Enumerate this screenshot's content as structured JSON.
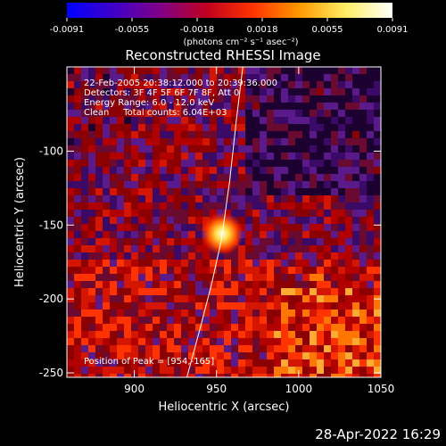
{
  "colorbar": {
    "ticks": [
      "-0.0091",
      "-0.0055",
      "-0.0018",
      "0.0018",
      "0.0055",
      "0.0091"
    ],
    "unit_label": "(photons cm⁻² s⁻¹ asec⁻²)",
    "stops": [
      "#0000ff",
      "#3f00c8",
      "#7f0088",
      "#c00020",
      "#ff3300",
      "#ff9900",
      "#ffee66",
      "#ffffff"
    ]
  },
  "chart_data": {
    "type": "heatmap",
    "title": "Reconstructed RHESSI Image",
    "xlabel": "Heliocentric X (arcsec)",
    "ylabel": "Heliocentric Y (arcsec)",
    "xlim": [
      859,
      1050
    ],
    "ylim": [
      -253,
      -43
    ],
    "xticks": [
      900,
      950,
      1000,
      1050
    ],
    "yticks": [
      -100,
      -150,
      -200,
      -250
    ],
    "value_range": [
      -0.0091,
      0.0091
    ],
    "peak": {
      "x": 954,
      "y": -165
    },
    "info_lines": [
      "22-Feb-2005 20:38:12.000 to 20:39:36.000",
      "Detectors: 3F 4F 5F 6F 7F 8F, Att 0",
      "Energy Range: 6.0 - 12.0 keV",
      "Clean     Total counts: 6.04E+03"
    ],
    "peak_label": "Position of Peak = [954,-165]",
    "limb": [
      [
        966,
        -43
      ],
      [
        962,
        -80
      ],
      [
        958,
        -120
      ],
      [
        953,
        -160
      ],
      [
        947,
        -190
      ],
      [
        940,
        -220
      ],
      [
        932,
        -253
      ]
    ]
  },
  "timestamp": "28-Apr-2022 16:29"
}
